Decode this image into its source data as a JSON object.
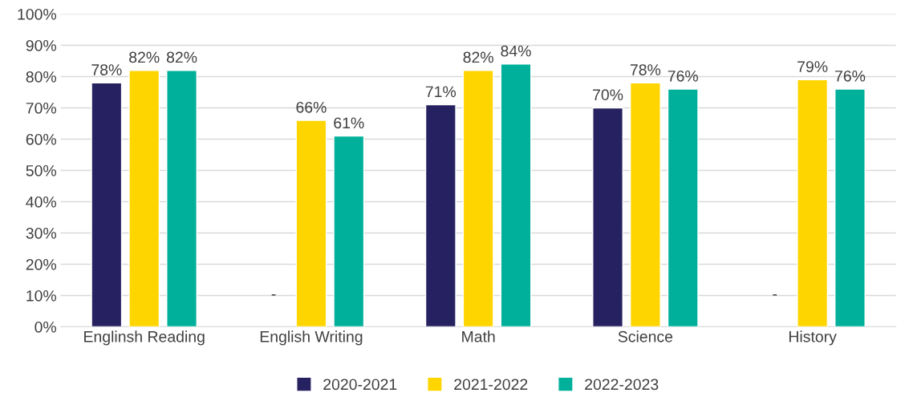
{
  "chart_data": {
    "type": "bar",
    "categories": [
      "Englinsh Reading",
      "English Writing",
      "Math",
      "Science",
      "History"
    ],
    "series": [
      {
        "name": "2020-2021",
        "color": "#262261",
        "values": [
          78,
          null,
          71,
          70,
          null
        ],
        "value_labels": [
          "78%",
          "-",
          "71%",
          "70%",
          "-"
        ]
      },
      {
        "name": "2021-2022",
        "color": "#ffd500",
        "values": [
          82,
          66,
          82,
          78,
          79
        ],
        "value_labels": [
          "82%",
          "66%",
          "82%",
          "78%",
          "79%"
        ]
      },
      {
        "name": "2022-2023",
        "color": "#00b09b",
        "values": [
          82,
          61,
          84,
          76,
          76
        ],
        "value_labels": [
          "82%",
          "61%",
          "84%",
          "76%",
          "76%"
        ]
      }
    ],
    "ylim": [
      0,
      100
    ],
    "yticks": [
      {
        "value": 0,
        "label": "0%"
      },
      {
        "value": 10,
        "label": "10%"
      },
      {
        "value": 20,
        "label": "20%"
      },
      {
        "value": 30,
        "label": "30%"
      },
      {
        "value": 40,
        "label": "40%"
      },
      {
        "value": 50,
        "label": "50%"
      },
      {
        "value": 60,
        "label": "60%"
      },
      {
        "value": 70,
        "label": "70%"
      },
      {
        "value": 80,
        "label": "80%"
      },
      {
        "value": 90,
        "label": "90%"
      },
      {
        "value": 100,
        "label": "100%"
      }
    ],
    "grid": "y",
    "legend": "bottom"
  }
}
